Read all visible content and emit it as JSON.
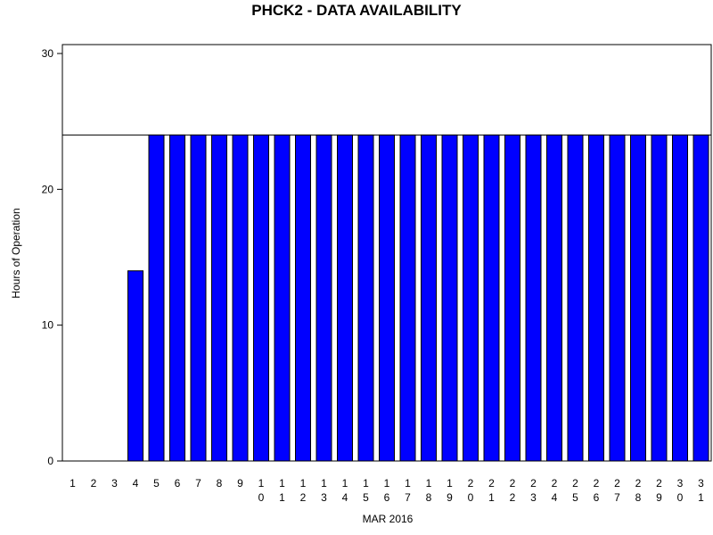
{
  "chart_data": {
    "type": "bar",
    "title": "PHCK2 - DATA AVAILABILITY",
    "xlabel": "MAR 2016",
    "ylabel": "Hours of Operation",
    "categories": [
      "1",
      "2",
      "3",
      "4",
      "5",
      "6",
      "7",
      "8",
      "9",
      "10",
      "11",
      "12",
      "13",
      "14",
      "15",
      "16",
      "17",
      "18",
      "19",
      "20",
      "21",
      "22",
      "23",
      "24",
      "25",
      "26",
      "27",
      "28",
      "29",
      "30",
      "31"
    ],
    "values": [
      0,
      0,
      0,
      14,
      24,
      24,
      24,
      24,
      24,
      24,
      24,
      24,
      24,
      24,
      24,
      24,
      24,
      24,
      24,
      24,
      24,
      24,
      24,
      24,
      24,
      24,
      24,
      24,
      24,
      24,
      24
    ],
    "ylim": [
      0,
      30
    ],
    "yticks": [
      0,
      10,
      20,
      30
    ],
    "reference_line": 24,
    "bar_color": "#0000ff",
    "grid": false,
    "legend": "none"
  }
}
